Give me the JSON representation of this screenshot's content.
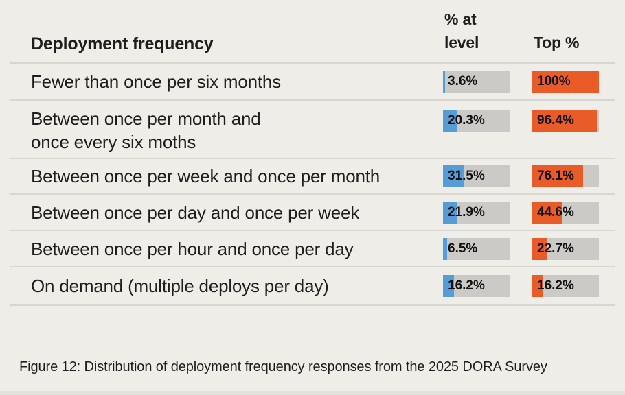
{
  "colors": {
    "background": "#efede8",
    "text": "#1e1e1c",
    "divider": "#d8d6d1",
    "bar_bg": "#cbcac7",
    "blue": "#569cd6",
    "orange": "#e95c28",
    "bottom_strip": "#e3e1dc"
  },
  "table": {
    "header": {
      "category": "Deployment frequency",
      "at_level": "% at level",
      "top": "Top %"
    },
    "rows": [
      {
        "label": "Fewer than once per six months",
        "at_level_label": "3.6%",
        "at_level_pct": 3.6,
        "top_label": "100%",
        "top_pct": 100
      },
      {
        "label": "Between once per month and\nonce every six moths",
        "at_level_label": "20.3%",
        "at_level_pct": 20.3,
        "top_label": "96.4%",
        "top_pct": 96.4
      },
      {
        "label": "Between once per week and once per month",
        "at_level_label": "31.5%",
        "at_level_pct": 31.5,
        "top_label": "76.1%",
        "top_pct": 76.1
      },
      {
        "label": "Between once per day and once per week",
        "at_level_label": "21.9%",
        "at_level_pct": 21.9,
        "top_label": "44.6%",
        "top_pct": 44.6
      },
      {
        "label": "Between once per hour and once per day",
        "at_level_label": "6.5%",
        "at_level_pct": 6.5,
        "top_label": "22.7%",
        "top_pct": 22.7
      },
      {
        "label": "On demand (multiple deploys per day)",
        "at_level_label": "16.2%",
        "at_level_pct": 16.2,
        "top_label": "16.2%",
        "top_pct": 16.2
      }
    ]
  },
  "caption": "Figure 12: Distribution of deployment frequency responses from the 2025 DORA Survey",
  "chart_data": {
    "type": "bar",
    "title": "Deployment frequency",
    "categories": [
      "Fewer than once per six months",
      "Between once per month and once every six moths",
      "Between once per week and once per month",
      "Between once per day and once per week",
      "Between once per hour and once per day",
      "On demand (multiple deploys per day)"
    ],
    "series": [
      {
        "name": "% at level",
        "values": [
          3.6,
          20.3,
          31.5,
          21.9,
          6.5,
          16.2
        ],
        "color": "#569cd6"
      },
      {
        "name": "Top %",
        "values": [
          100,
          96.4,
          76.1,
          44.6,
          22.7,
          16.2
        ],
        "color": "#e95c28"
      }
    ],
    "xlim": [
      0,
      100
    ],
    "orientation": "horizontal",
    "grid": false,
    "legend_position": "column-headers",
    "caption": "Figure 12: Distribution of deployment frequency responses from the 2025 DORA Survey"
  }
}
